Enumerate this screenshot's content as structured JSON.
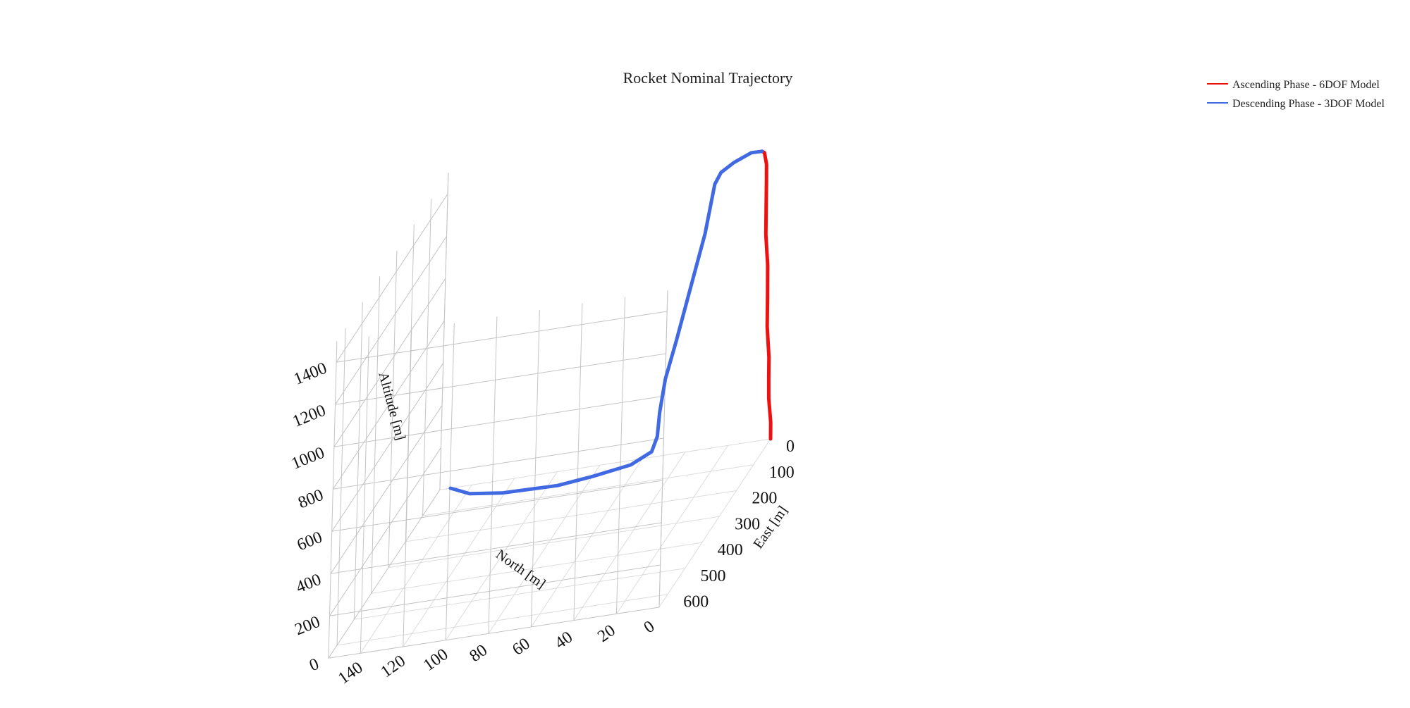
{
  "chart_data": {
    "type": "line",
    "title": "Rocket Nominal Trajectory",
    "axes": {
      "x": {
        "label": "East [m]",
        "range": [
          0,
          650
        ],
        "ticks": [
          0,
          100,
          200,
          300,
          400,
          500,
          600
        ]
      },
      "y": {
        "label": "North [m]",
        "range": [
          0,
          155
        ],
        "ticks": [
          0,
          20,
          40,
          60,
          80,
          100,
          120,
          140
        ]
      },
      "z": {
        "label": "Altitude [m]",
        "range": [
          0,
          1500
        ],
        "ticks": [
          0,
          200,
          400,
          600,
          800,
          1000,
          1200,
          1400
        ]
      }
    },
    "grid": true,
    "legend_position": "top-right",
    "series": [
      {
        "name": "Ascending Phase - 6DOF Model",
        "color": "#ee1111",
        "x": [
          0,
          2,
          5,
          8,
          10,
          13,
          16,
          20,
          23,
          26,
          28,
          30,
          32,
          34
        ],
        "y": [
          0,
          0,
          1,
          1,
          1,
          2,
          2,
          2,
          3,
          3,
          3,
          3,
          4,
          5
        ],
        "z": [
          0,
          80,
          200,
          300,
          400,
          550,
          700,
          850,
          1000,
          1150,
          1260,
          1340,
          1400,
          1410
        ]
      },
      {
        "name": "Descending Phase - 3DOF Model",
        "color": "#4169e1",
        "x": [
          34,
          60,
          100,
          125,
          135,
          160,
          200,
          240,
          262,
          265,
          250,
          230,
          200,
          170,
          150,
          100,
          50,
          0
        ],
        "y": [
          5,
          8,
          13,
          17,
          19,
          21,
          24,
          27,
          30,
          32,
          34,
          38,
          50,
          70,
          88,
          118,
          137,
          150
        ],
        "z": [
          1410,
          1440,
          1450,
          1440,
          1400,
          1200,
          1000,
          800,
          650,
          500,
          370,
          280,
          200,
          140,
          100,
          50,
          15,
          0
        ]
      }
    ]
  }
}
